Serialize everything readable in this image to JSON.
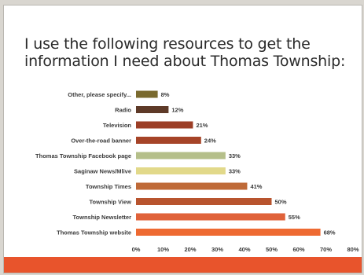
{
  "slide": {
    "title_line1": "I use the following resources to get the",
    "title_line2": "information I need about Thomas Township:",
    "bar_color": "#e8542c"
  },
  "chart_data": {
    "type": "bar",
    "orientation": "horizontal",
    "categories": [
      "Other, please specify...",
      "Radio",
      "Television",
      "Over-the-road banner",
      "Thomas Township Facebook page",
      "Saginaw News/Mlive",
      "Township Times",
      "Township View",
      "Township Newsletter",
      "Thomas Township website"
    ],
    "values": [
      8,
      12,
      21,
      24,
      33,
      33,
      41,
      50,
      55,
      68
    ],
    "value_labels": [
      "8%",
      "12%",
      "21%",
      "24%",
      "33%",
      "33%",
      "41%",
      "50%",
      "55%",
      "68%"
    ],
    "colors": [
      "#7a6a2e",
      "#5e3a28",
      "#9c3e26",
      "#a64428",
      "#b5bf8a",
      "#e2d98a",
      "#bf6a38",
      "#b8542e",
      "#e0623a",
      "#ee6a32"
    ],
    "xlim": [
      0,
      80
    ],
    "xticks": [
      0,
      10,
      20,
      30,
      40,
      50,
      60,
      70,
      80
    ],
    "xtick_labels": [
      "0%",
      "10%",
      "20%",
      "30%",
      "40%",
      "50%",
      "60%",
      "70%",
      "80%"
    ],
    "title": "",
    "xlabel": "",
    "ylabel": "",
    "grid": false,
    "legend": "none"
  }
}
